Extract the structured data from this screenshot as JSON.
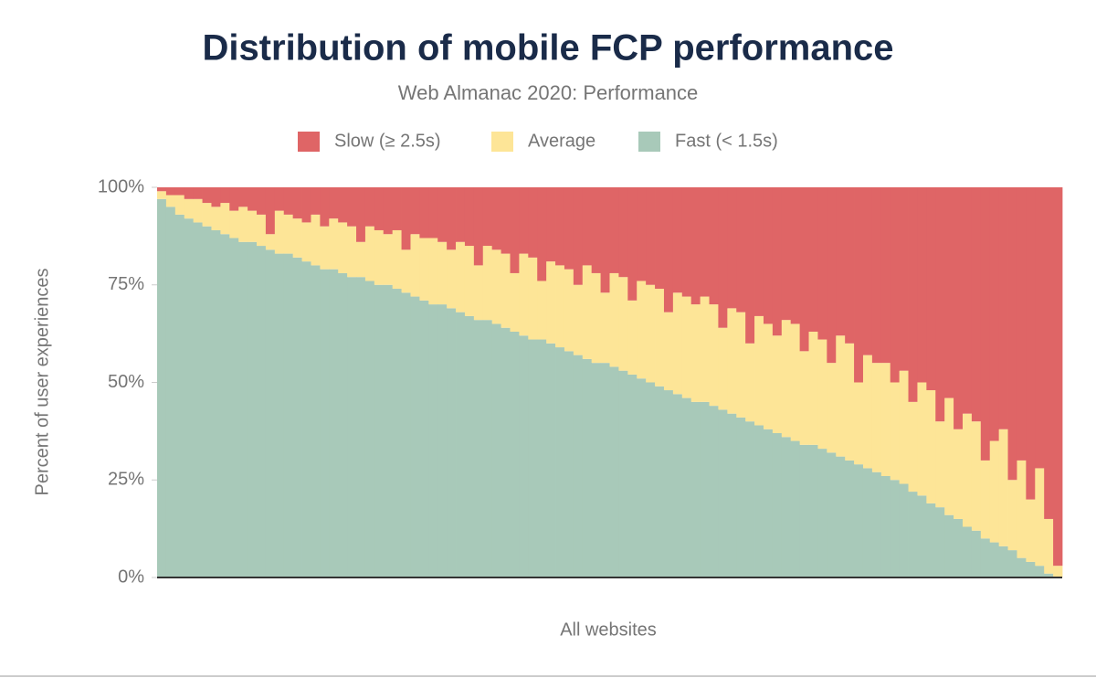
{
  "chart_data": {
    "type": "stacked_bar",
    "title": "Distribution of mobile FCP performance",
    "subtitle": "Web Almanac 2020: Performance",
    "x_label": "All websites",
    "y_label": "Percent of user experiences",
    "ylim": [
      0,
      100
    ],
    "yticks": [
      {
        "value": 0,
        "label": "0%"
      },
      {
        "value": 25,
        "label": "25%"
      },
      {
        "value": 50,
        "label": "50%"
      },
      {
        "value": 75,
        "label": "75%"
      },
      {
        "value": 100,
        "label": "100%"
      }
    ],
    "categories": [
      null,
      null,
      null,
      null,
      null,
      null,
      null,
      null,
      null,
      null,
      null,
      null,
      null,
      null,
      null,
      null,
      null,
      null,
      null,
      null,
      null,
      null,
      null,
      null,
      null,
      null,
      null,
      null,
      null,
      null,
      null,
      null,
      null,
      null,
      null,
      null,
      null,
      null,
      null,
      null,
      null,
      null,
      null,
      null,
      null,
      null,
      null,
      null,
      null,
      null,
      null,
      null,
      null,
      null,
      null,
      null,
      null,
      null,
      null,
      null,
      null,
      null,
      null,
      null,
      null,
      null,
      null,
      null,
      null,
      null,
      null,
      null,
      null,
      null,
      null,
      null,
      null,
      null,
      null,
      null,
      null,
      null,
      null,
      null,
      null,
      null,
      null,
      null,
      null,
      null,
      null,
      null,
      null,
      null,
      null,
      null,
      null,
      null,
      null,
      null
    ],
    "series": [
      {
        "name": "Slow (≥ 2.5s)",
        "color": "#df6566",
        "values": [
          1,
          2,
          2,
          3,
          3,
          4,
          5,
          4,
          6,
          5,
          6,
          7,
          12,
          6,
          7,
          8,
          9,
          7,
          10,
          8,
          9,
          10,
          14,
          10,
          11,
          12,
          11,
          16,
          12,
          13,
          13,
          14,
          16,
          14,
          15,
          20,
          15,
          16,
          17,
          22,
          17,
          18,
          24,
          19,
          20,
          21,
          25,
          20,
          22,
          27,
          22,
          23,
          29,
          24,
          25,
          26,
          32,
          27,
          28,
          30,
          28,
          30,
          36,
          31,
          32,
          40,
          33,
          35,
          38,
          34,
          35,
          42,
          37,
          39,
          45,
          38,
          40,
          50,
          43,
          45,
          45,
          50,
          47,
          55,
          50,
          52,
          60,
          54,
          62,
          58,
          60,
          70,
          65,
          62,
          75,
          70,
          80,
          72,
          85,
          97
        ]
      },
      {
        "name": "Average",
        "color": "#fde597",
        "values": [
          2,
          3,
          5,
          5,
          6,
          6,
          6,
          8,
          7,
          9,
          8,
          8,
          4,
          11,
          10,
          10,
          10,
          13,
          11,
          13,
          13,
          13,
          9,
          14,
          14,
          13,
          15,
          11,
          16,
          16,
          17,
          16,
          15,
          18,
          18,
          14,
          19,
          19,
          19,
          15,
          21,
          21,
          15,
          21,
          21,
          21,
          18,
          24,
          23,
          18,
          24,
          24,
          19,
          25,
          25,
          25,
          20,
          26,
          26,
          25,
          27,
          26,
          21,
          27,
          27,
          20,
          28,
          27,
          25,
          30,
          30,
          24,
          29,
          28,
          23,
          31,
          30,
          21,
          29,
          28,
          29,
          25,
          29,
          23,
          29,
          29,
          22,
          30,
          23,
          29,
          28,
          20,
          26,
          30,
          18,
          25,
          16,
          25,
          14,
          3
        ]
      },
      {
        "name": "Fast (< 1.5s)",
        "color": "#a8c9b9",
        "values": [
          97,
          95,
          93,
          92,
          91,
          90,
          89,
          88,
          87,
          86,
          86,
          85,
          84,
          83,
          83,
          82,
          81,
          80,
          79,
          79,
          78,
          77,
          77,
          76,
          75,
          75,
          74,
          73,
          72,
          71,
          70,
          70,
          69,
          68,
          67,
          66,
          66,
          65,
          64,
          63,
          62,
          61,
          61,
          60,
          59,
          58,
          57,
          56,
          55,
          55,
          54,
          53,
          52,
          51,
          50,
          49,
          48,
          47,
          46,
          45,
          45,
          44,
          43,
          42,
          41,
          40,
          39,
          38,
          37,
          36,
          35,
          34,
          34,
          33,
          32,
          31,
          30,
          29,
          28,
          27,
          26,
          25,
          24,
          22,
          21,
          19,
          18,
          16,
          15,
          13,
          12,
          10,
          9,
          8,
          7,
          5,
          4,
          3,
          1,
          0
        ]
      }
    ]
  }
}
